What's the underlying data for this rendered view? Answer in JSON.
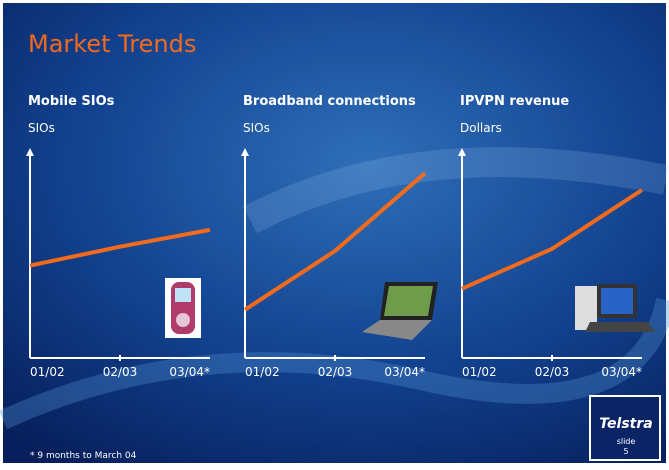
{
  "slide": {
    "title": "Market Trends",
    "footnote": "* 9 months to March 04",
    "logo": "Telstra",
    "slide_label": "slide",
    "slide_number": "5"
  },
  "chart_data": [
    {
      "type": "line",
      "title": "Mobile SIOs",
      "y_label": "SIOs",
      "categories": [
        "01/02",
        "02/03",
        "03/04*"
      ],
      "values": [
        44,
        53,
        61
      ],
      "color": "#f26a1b",
      "ylim": [
        0,
        100
      ]
    },
    {
      "type": "line",
      "title": "Broadband connections",
      "y_label": "SIOs",
      "categories": [
        "01/02",
        "02/03",
        "03/04*"
      ],
      "values": [
        23,
        51,
        88
      ],
      "color": "#f26a1b",
      "ylim": [
        0,
        100
      ]
    },
    {
      "type": "line",
      "title": "IPVPN revenue",
      "y_label": "Dollars",
      "categories": [
        "01/02",
        "02/03",
        "03/04*"
      ],
      "values": [
        33,
        52,
        80
      ],
      "color": "#f26a1b",
      "ylim": [
        0,
        100
      ]
    }
  ]
}
